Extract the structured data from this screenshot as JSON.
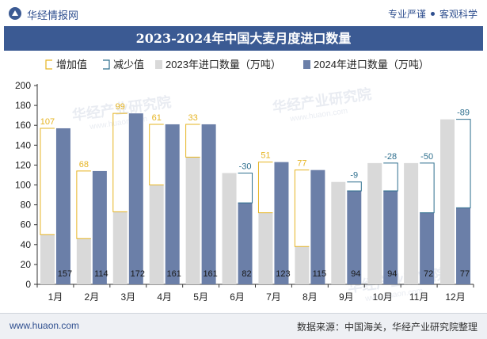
{
  "header": {
    "brand": "华经情报网",
    "tagline_left": "专业严谨",
    "tagline_right": "客观科学"
  },
  "title": "2023-2024年中国大麦月度进口数量",
  "footer": {
    "url": "www.huaon.com",
    "source": "数据来源：中国海关，华经产业研究院整理"
  },
  "watermarks": [
    "华经产业研究院",
    "www.huaon.com"
  ],
  "colors": {
    "title_bg": "#3b5a93",
    "series_2023": "#d9d9d9",
    "series_2024": "#6b7fa8",
    "increase": "#e6b422",
    "decrease": "#2e6f8e"
  },
  "chart_data": {
    "type": "bar",
    "title": "2023-2024年中国大麦月度进口数量",
    "categories": [
      "1月",
      "2月",
      "3月",
      "4月",
      "5月",
      "6月",
      "7月",
      "8月",
      "9月",
      "10月",
      "11月",
      "12月"
    ],
    "series": [
      {
        "name": "2023年进口数量（万吨）",
        "values": [
          50,
          46,
          73,
          100,
          128,
          112,
          72,
          38,
          103,
          122,
          122,
          166
        ]
      },
      {
        "name": "2024年进口数量（万吨）",
        "values": [
          157,
          114,
          172,
          161,
          161,
          82,
          123,
          115,
          94,
          94,
          72,
          77
        ]
      }
    ],
    "difference": {
      "increase_label": "增加值",
      "decrease_label": "减少值",
      "values": [
        107,
        68,
        99,
        61,
        33,
        -30,
        51,
        77,
        -9,
        -28,
        -50,
        -89
      ]
    },
    "ylim": [
      0,
      200
    ],
    "yticks": [
      0,
      20,
      40,
      60,
      80,
      100,
      120,
      140,
      160,
      180,
      200
    ],
    "legend": "top",
    "grid": false
  }
}
